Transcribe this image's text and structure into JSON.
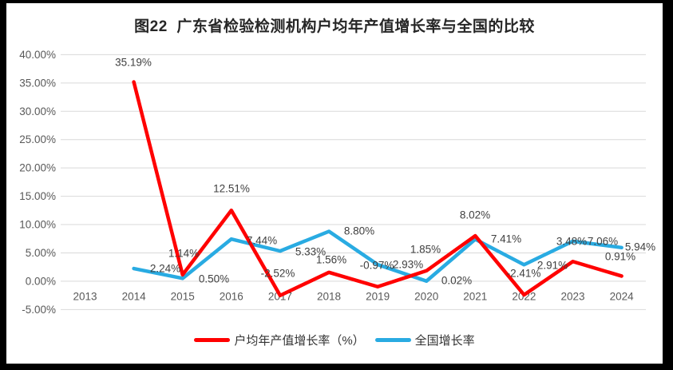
{
  "page": {
    "frame_color": "#000000",
    "surface_color": "#FFFFFF"
  },
  "chart_data": {
    "type": "line",
    "title": "图22  广东省检验检测机构户均年产值增长率与全国的比较",
    "categories": [
      "2013",
      "2014",
      "2015",
      "2016",
      "2017",
      "2018",
      "2019",
      "2020",
      "2021",
      "2022",
      "2023",
      "2024"
    ],
    "series": [
      {
        "name": "户均年产值增长率（%）",
        "color": "#FF0000",
        "x": [
          "2014",
          "2015",
          "2016",
          "2017",
          "2018",
          "2019",
          "2020",
          "2021",
          "2022",
          "2023",
          "2024"
        ],
        "values": [
          35.19,
          1.14,
          12.51,
          -2.52,
          1.56,
          -0.97,
          1.85,
          8.02,
          -2.41,
          3.48,
          0.91
        ],
        "labels": [
          "35.19%",
          "1.14%",
          "12.51%",
          "-2.52%",
          "1.56%",
          "-0.97%",
          "1.85%",
          "8.02%",
          "-2.41%",
          "3.48%",
          "0.91%"
        ]
      },
      {
        "name": "全国增长率",
        "color": "#29ABE2",
        "x": [
          "2014",
          "2015",
          "2016",
          "2017",
          "2018",
          "2019",
          "2020",
          "2021",
          "2022",
          "2023",
          "2024"
        ],
        "values": [
          2.24,
          0.5,
          7.44,
          5.33,
          8.8,
          2.93,
          0.02,
          7.41,
          2.91,
          7.06,
          5.94
        ],
        "labels": [
          "2.24%",
          "0.50%",
          "7.44%",
          "5.33%",
          "8.80%",
          "2.93%",
          "0.02%",
          "7.41%",
          "2.91%",
          "7.06%",
          "5.94%"
        ]
      }
    ],
    "y_axis": {
      "min": -5,
      "max": 40,
      "step": 5,
      "tick_labels": [
        "40.00%",
        "35.00%",
        "30.00%",
        "25.00%",
        "20.00%",
        "15.00%",
        "10.00%",
        "5.00%",
        "0.00%",
        "-5.00%"
      ]
    },
    "grid": true,
    "legend_position": "bottom",
    "gridline_color": "#D9D9D9",
    "axis_label_color": "#595959",
    "data_label_color": "#404040"
  }
}
